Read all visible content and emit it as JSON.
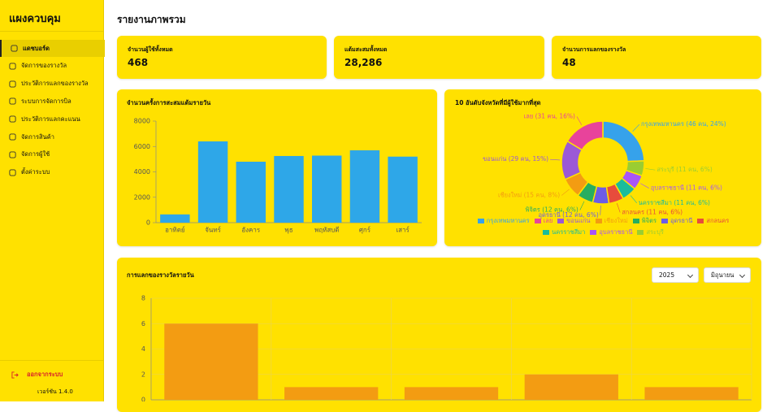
{
  "sidebar": {
    "title": "แผงควบคุม",
    "menu": [
      "แดชบอร์ด",
      "จัดการของรางวัล",
      "ประวัติการแลกของรางวัล",
      "ระบบการจัดการบิล",
      "ประวัติการแลกคะแนน",
      "จัดการสินค้า",
      "จัดการผู้ใช้",
      "ตั้งค่าระบบ"
    ],
    "logout": "ออกจากระบบ",
    "version": "เวอร์ชัน 1.4.0"
  },
  "header": {
    "title": "รายงานภาพรวม"
  },
  "stats": [
    {
      "label": "จำนวนผู้ใช้ทั้งหมด",
      "value": "468"
    },
    {
      "label": "แต้มสะสมทั้งหมด",
      "value": "28,286"
    },
    {
      "label": "จำนวนการแลกของรางวัล",
      "value": "48"
    }
  ],
  "chart_data": [
    {
      "type": "bar",
      "title": "จำนวนครั้งการสะสมแต้มรายวัน",
      "categories": [
        "อาทิตย์",
        "จันทร์",
        "อังคาร",
        "พุธ",
        "พฤหัสบดี",
        "ศุกร์",
        "เสาร์"
      ],
      "values": [
        650,
        6400,
        4800,
        5250,
        5280,
        5700,
        5200
      ],
      "color": "#2ea7e8",
      "ylim": [
        0,
        8000
      ],
      "yticks": [
        0,
        2000,
        4000,
        6000,
        8000
      ],
      "grid": false
    },
    {
      "type": "pie",
      "title": "10 อันดับจังหวัดที่มีผู้ใช้มากที่สุด",
      "categories": [
        "กรุงเทพมหานคร",
        "เลย",
        "ขอนแก่น",
        "เชียงใหม่",
        "พิจิตร",
        "อุดรธานี",
        "สกลนคร",
        "นครราชสีมา",
        "อุบลราชธานี",
        "สระบุรี"
      ],
      "values": [
        46,
        31,
        29,
        15,
        12,
        12,
        11,
        11,
        11,
        11
      ],
      "value_labels": [
        "กรุงเทพมหานคร (46 คน, 24%)",
        "เลย (31 คน, 16%)",
        "ขอนแก่น (29 คน, 15%)",
        "เชียงใหม่ (15 คน, 8%)",
        "พิจิตร (12 คน, 6%)",
        "อุดรธานี (12 คน, 6%)",
        "สกลนคร (11 คน, 6%)",
        "นครราชสีมา (11 คน, 6%)",
        "อุบลราชธานี (11 คน, 6%)",
        "สระบุรี (11 คน, 6%)"
      ],
      "colors": [
        "#36a2eb",
        "#e8439b",
        "#9b59d6",
        "#f39c12",
        "#27ae60",
        "#6c5ce7",
        "#e74c3c",
        "#1abc9c",
        "#a855f7",
        "#9acd32"
      ],
      "donut": true
    },
    {
      "type": "bar",
      "title": "การแลกของรางวัลรายวัน",
      "filters": [
        "2025",
        "มิถุนายน"
      ],
      "categories": [
        null,
        null,
        null,
        null,
        null
      ],
      "values": [
        6,
        1,
        1,
        2,
        1
      ],
      "color": "#f39c12",
      "ylim": [
        0,
        8
      ],
      "yticks": [
        0,
        2,
        4,
        6,
        8
      ],
      "grid": true
    }
  ]
}
